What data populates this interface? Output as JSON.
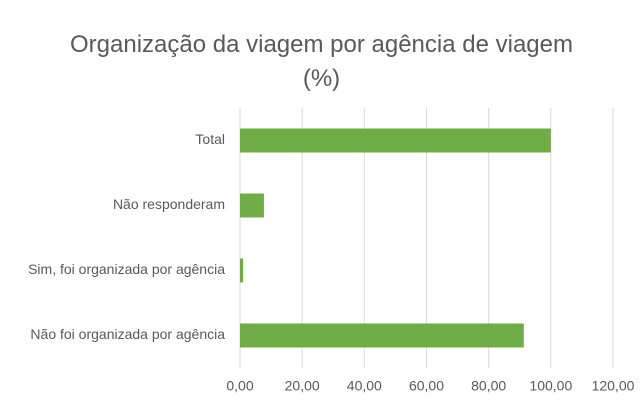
{
  "chart_data": {
    "type": "barh",
    "title": "Organização da viagem por agência de viagem (%)",
    "categories": [
      "Total",
      "Não responderam",
      "Sim, foi organizada por agência",
      "Não foi organizada por agência"
    ],
    "values": [
      100,
      7.7,
      1.0,
      91.3
    ],
    "color": "#70ad47",
    "xlim": [
      0,
      120
    ],
    "xticks": [
      {
        "value": 0,
        "label": "0,00"
      },
      {
        "value": 20,
        "label": "20,00"
      },
      {
        "value": 40,
        "label": "40,00"
      },
      {
        "value": 60,
        "label": "60,00"
      },
      {
        "value": 80,
        "label": "80,00"
      },
      {
        "value": 100,
        "label": "100,00"
      },
      {
        "value": 120,
        "label": "120,00"
      }
    ],
    "grid": true
  }
}
